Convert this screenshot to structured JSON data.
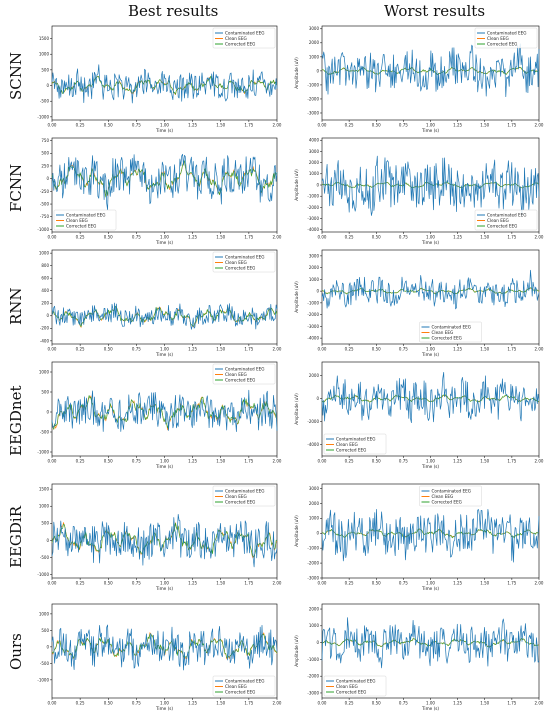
{
  "headers": {
    "left": "Best results",
    "right": "Worst results"
  },
  "rows": [
    "SCNN",
    "FCNN",
    "RNN",
    "EEGDnet",
    "EEGDiR",
    "Ours"
  ],
  "colors": {
    "contaminated": "#1f77b4",
    "clean": "#ff7f0e",
    "corrected": "#2ca02c"
  },
  "chart_data": [
    {
      "type": "line",
      "row": "SCNN",
      "column": "Best results",
      "xlabel": "Time (s)",
      "ylabel": "Amplitude (uV)",
      "xlim": [
        0,
        2
      ],
      "ylim": [
        -1100,
        1900
      ],
      "yticks": [
        -1000,
        -500,
        0,
        500,
        1000,
        1500
      ],
      "xticks": [
        0.0,
        0.25,
        0.5,
        0.75,
        1.0,
        1.25,
        1.5,
        1.75,
        2.0
      ],
      "legend": "top-right",
      "series": [
        {
          "name": "Contaminated EEG",
          "amp": 430
        },
        {
          "name": "Clean EEG",
          "amp": 230
        },
        {
          "name": "Corrected EEG",
          "amp": 230
        }
      ]
    },
    {
      "type": "line",
      "row": "SCNN",
      "column": "Worst results",
      "xlabel": "Time (s)",
      "ylabel": "Amplitude (uV)",
      "xlim": [
        0,
        2
      ],
      "ylim": [
        -3500,
        3200
      ],
      "yticks": [
        -3000,
        -2000,
        -1000,
        0,
        1000,
        2000,
        3000
      ],
      "xticks": [
        0.0,
        0.25,
        0.5,
        0.75,
        1.0,
        1.25,
        1.5,
        1.75,
        2.0
      ],
      "legend": "top-right",
      "series": [
        {
          "name": "Contaminated EEG",
          "amp": 1300
        },
        {
          "name": "Clean EEG",
          "amp": 230
        },
        {
          "name": "Corrected EEG",
          "amp": 260
        }
      ]
    },
    {
      "type": "line",
      "row": "FCNN",
      "column": "Best results",
      "xlabel": "Time (s)",
      "ylabel": "Amplitude (uV)",
      "xlim": [
        0,
        2
      ],
      "ylim": [
        -1050,
        800
      ],
      "yticks": [
        -1000,
        -750,
        -500,
        -250,
        0,
        250,
        500,
        750
      ],
      "xticks": [
        0.0,
        0.25,
        0.5,
        0.75,
        1.0,
        1.25,
        1.5,
        1.75,
        2.0
      ],
      "legend": "bottom-left",
      "series": [
        {
          "name": "Contaminated EEG",
          "amp": 380
        },
        {
          "name": "Clean EEG",
          "amp": 260
        },
        {
          "name": "Corrected EEG",
          "amp": 260
        }
      ]
    },
    {
      "type": "line",
      "row": "FCNN",
      "column": "Worst results",
      "xlabel": "Time (s)",
      "ylabel": "Amplitude (uV)",
      "xlim": [
        0,
        2
      ],
      "ylim": [
        -4200,
        4200
      ],
      "yticks": [
        -4000,
        -3000,
        -2000,
        -1000,
        0,
        1000,
        2000,
        3000,
        4000
      ],
      "xticks": [
        0.0,
        0.25,
        0.5,
        0.75,
        1.0,
        1.25,
        1.5,
        1.75,
        2.0
      ],
      "legend": "bottom-right",
      "series": [
        {
          "name": "Contaminated EEG",
          "amp": 2000
        },
        {
          "name": "Clean EEG",
          "amp": 230
        },
        {
          "name": "Corrected EEG",
          "amp": 260
        }
      ]
    },
    {
      "type": "line",
      "row": "RNN",
      "column": "Best results",
      "xlabel": "Time (s)",
      "ylabel": "Amplitude (uV)",
      "xlim": [
        0,
        2
      ],
      "ylim": [
        -450,
        1050
      ],
      "yticks": [
        -400,
        -200,
        0,
        200,
        400,
        600,
        800,
        1000
      ],
      "xticks": [
        0.0,
        0.25,
        0.5,
        0.75,
        1.0,
        1.25,
        1.5,
        1.75,
        2.0
      ],
      "legend": "top-right",
      "series": [
        {
          "name": "Contaminated EEG",
          "amp": 150
        },
        {
          "name": "Clean EEG",
          "amp": 130
        },
        {
          "name": "Corrected EEG",
          "amp": 130
        }
      ]
    },
    {
      "type": "line",
      "row": "RNN",
      "column": "Worst results",
      "xlabel": "Time (s)",
      "ylabel": "Amplitude (uV)",
      "xlim": [
        0,
        2
      ],
      "ylim": [
        -4500,
        3500
      ],
      "yticks": [
        -4000,
        -3000,
        -2000,
        -1000,
        0,
        1000,
        2000,
        3000
      ],
      "xticks": [
        0.0,
        0.25,
        0.5,
        0.75,
        1.0,
        1.25,
        1.5,
        1.75,
        2.0
      ],
      "legend": "bottom-center",
      "series": [
        {
          "name": "Contaminated EEG",
          "amp": 1100
        },
        {
          "name": "Clean EEG",
          "amp": 200
        },
        {
          "name": "Corrected EEG",
          "amp": 230
        }
      ]
    },
    {
      "type": "line",
      "row": "EEGDnet",
      "column": "Best results",
      "xlabel": "Time (s)",
      "ylabel": "Amplitude (uV)",
      "xlim": [
        0,
        2
      ],
      "ylim": [
        -1100,
        1250
      ],
      "yticks": [
        -1000,
        -500,
        0,
        500,
        1000
      ],
      "xticks": [
        0.0,
        0.25,
        0.5,
        0.75,
        1.0,
        1.25,
        1.5,
        1.75,
        2.0
      ],
      "legend": "top-right",
      "series": [
        {
          "name": "Contaminated EEG",
          "amp": 420
        },
        {
          "name": "Clean EEG",
          "amp": 330
        },
        {
          "name": "Corrected EEG",
          "amp": 330
        }
      ]
    },
    {
      "type": "line",
      "row": "EEGDnet",
      "column": "Worst results",
      "xlabel": "Time (s)",
      "ylabel": "Amplitude (uV)",
      "xlim": [
        0,
        2
      ],
      "ylim": [
        -5000,
        3200
      ],
      "yticks": [
        -4000,
        -2000,
        0,
        2000
      ],
      "xticks": [
        0.0,
        0.25,
        0.5,
        0.75,
        1.0,
        1.25,
        1.5,
        1.75,
        2.0
      ],
      "legend": "bottom-left",
      "series": [
        {
          "name": "Contaminated EEG",
          "amp": 1500
        },
        {
          "name": "Clean EEG",
          "amp": 260
        },
        {
          "name": "Corrected EEG",
          "amp": 300
        }
      ]
    },
    {
      "type": "line",
      "row": "EEGDiR",
      "column": "Best results",
      "xlabel": "Time (s)",
      "ylabel": "Amplitude (uV)",
      "xlim": [
        0,
        2
      ],
      "ylim": [
        -1100,
        1650
      ],
      "yticks": [
        -1000,
        -500,
        0,
        500,
        1000,
        1500
      ],
      "xticks": [
        0.0,
        0.25,
        0.5,
        0.75,
        1.0,
        1.25,
        1.5,
        1.75,
        2.0
      ],
      "legend": "top-right",
      "series": [
        {
          "name": "Contaminated EEG",
          "amp": 520
        },
        {
          "name": "Clean EEG",
          "amp": 380
        },
        {
          "name": "Corrected EEG",
          "amp": 380
        }
      ]
    },
    {
      "type": "line",
      "row": "EEGDiR",
      "column": "Worst results",
      "xlabel": "Time (s)",
      "ylabel": "Amplitude (uV)",
      "xlim": [
        0,
        2
      ],
      "ylim": [
        -3000,
        3300
      ],
      "yticks": [
        -3000,
        -2000,
        -1000,
        0,
        1000,
        2000,
        3000
      ],
      "xticks": [
        0.0,
        0.25,
        0.5,
        0.75,
        1.0,
        1.25,
        1.5,
        1.75,
        2.0
      ],
      "legend": "top-center",
      "series": [
        {
          "name": "Contaminated EEG",
          "amp": 1300
        },
        {
          "name": "Clean EEG",
          "amp": 230
        },
        {
          "name": "Corrected EEG",
          "amp": 260
        }
      ]
    },
    {
      "type": "line",
      "row": "Ours",
      "column": "Best results",
      "xlabel": "Time (s)",
      "ylabel": "Amplitude (uV)",
      "xlim": [
        0,
        2
      ],
      "ylim": [
        -1550,
        1300
      ],
      "yticks": [
        -1000,
        -500,
        0,
        500,
        1000
      ],
      "xticks": [
        0.0,
        0.25,
        0.5,
        0.75,
        1.0,
        1.25,
        1.5,
        1.75,
        2.0
      ],
      "legend": "bottom-right",
      "series": [
        {
          "name": "Contaminated EEG",
          "amp": 520
        },
        {
          "name": "Clean EEG",
          "amp": 330
        },
        {
          "name": "Corrected EEG",
          "amp": 330
        }
      ]
    },
    {
      "type": "line",
      "row": "Ours",
      "column": "Worst results",
      "xlabel": "Time (s)",
      "ylabel": "Amplitude (uV)",
      "xlim": [
        0,
        2
      ],
      "ylim": [
        -3300,
        2300
      ],
      "yticks": [
        -3000,
        -2000,
        -1000,
        0,
        1000,
        2000
      ],
      "xticks": [
        0.0,
        0.25,
        0.5,
        0.75,
        1.0,
        1.25,
        1.5,
        1.75,
        2.0
      ],
      "legend": "bottom-left",
      "series": [
        {
          "name": "Contaminated EEG",
          "amp": 1000
        },
        {
          "name": "Clean EEG",
          "amp": 200
        },
        {
          "name": "Corrected EEG",
          "amp": 230
        }
      ]
    }
  ]
}
